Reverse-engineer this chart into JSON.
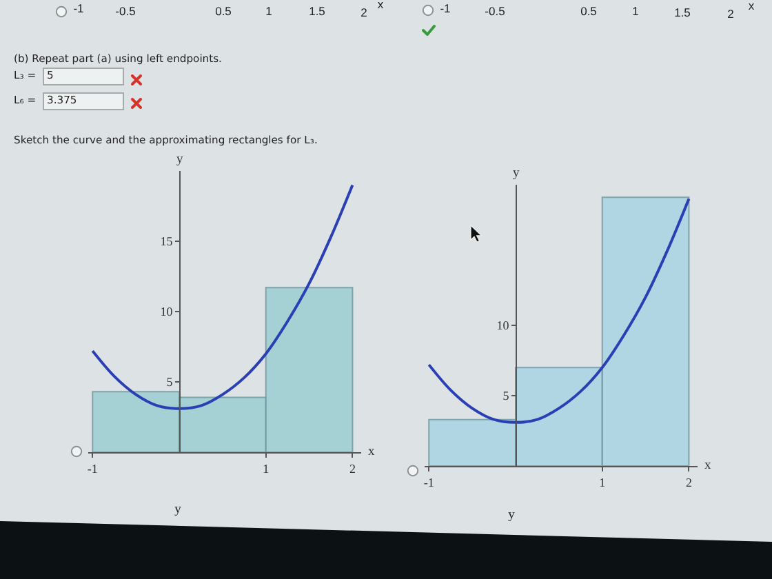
{
  "chart_data": [
    {
      "type": "other",
      "annotations": [
        "-1",
        "-0.5",
        "0.5",
        "1",
        "1.5",
        "2",
        "x"
      ]
    },
    {
      "type": "other",
      "annotations": [
        "-1",
        "-0.5",
        "0.5",
        "1",
        "1.5",
        "2",
        "x"
      ]
    },
    {
      "type": "other",
      "annotations": [
        "(b) Repeat part (a) using left endpoints.",
        "L₃ =",
        "5",
        "L₆ =",
        "3.375",
        "Sketch the curve and the approximating rectangles for L₃."
      ]
    },
    {
      "type": "histogram",
      "xlabel": "x",
      "ylabel": "y",
      "xlim": [
        -1.05,
        2.1
      ],
      "ylim": [
        0,
        20
      ],
      "xticks": [
        -1,
        1,
        2
      ],
      "yticks": [
        5,
        10,
        15
      ],
      "series": [
        {
          "type": "histogram",
          "bins": [
            -1,
            0,
            1,
            2
          ],
          "values": [
            4.3,
            3.9,
            11.7
          ],
          "color": "#9ccfd2"
        },
        {
          "type": "line",
          "x": [
            -1,
            -0.75,
            -0.5,
            -0.25,
            0,
            0.25,
            0.5,
            0.75,
            1,
            1.25,
            1.5,
            1.75,
            2
          ],
          "values": [
            7.2,
            5.4,
            4.1,
            3.3,
            3.1,
            3.3,
            4.1,
            5.3,
            7,
            9.3,
            12,
            15.3,
            19
          ],
          "color": "#2b3fb5"
        }
      ]
    },
    {
      "type": "histogram",
      "xlabel": "x",
      "ylabel": "y",
      "xlim": [
        -1.05,
        2.1
      ],
      "ylim": [
        0,
        20
      ],
      "xticks": [
        -1,
        1,
        2
      ],
      "yticks": [
        5,
        10
      ],
      "series": [
        {
          "type": "histogram",
          "bins": [
            -1,
            0,
            1,
            2
          ],
          "values": [
            3.3,
            7,
            19.1
          ],
          "color": "#a9d5e4"
        },
        {
          "type": "line",
          "x": [
            -1,
            -0.75,
            -0.5,
            -0.25,
            0,
            0.25,
            0.5,
            0.75,
            1,
            1.25,
            1.5,
            1.75,
            2
          ],
          "values": [
            7.2,
            5.4,
            4.1,
            3.3,
            3.1,
            3.3,
            4.1,
            5.3,
            7,
            9.3,
            12,
            15.3,
            19
          ],
          "color": "#2b3fb5"
        }
      ]
    },
    {
      "type": "other",
      "annotations": [
        "y",
        "y"
      ]
    }
  ]
}
